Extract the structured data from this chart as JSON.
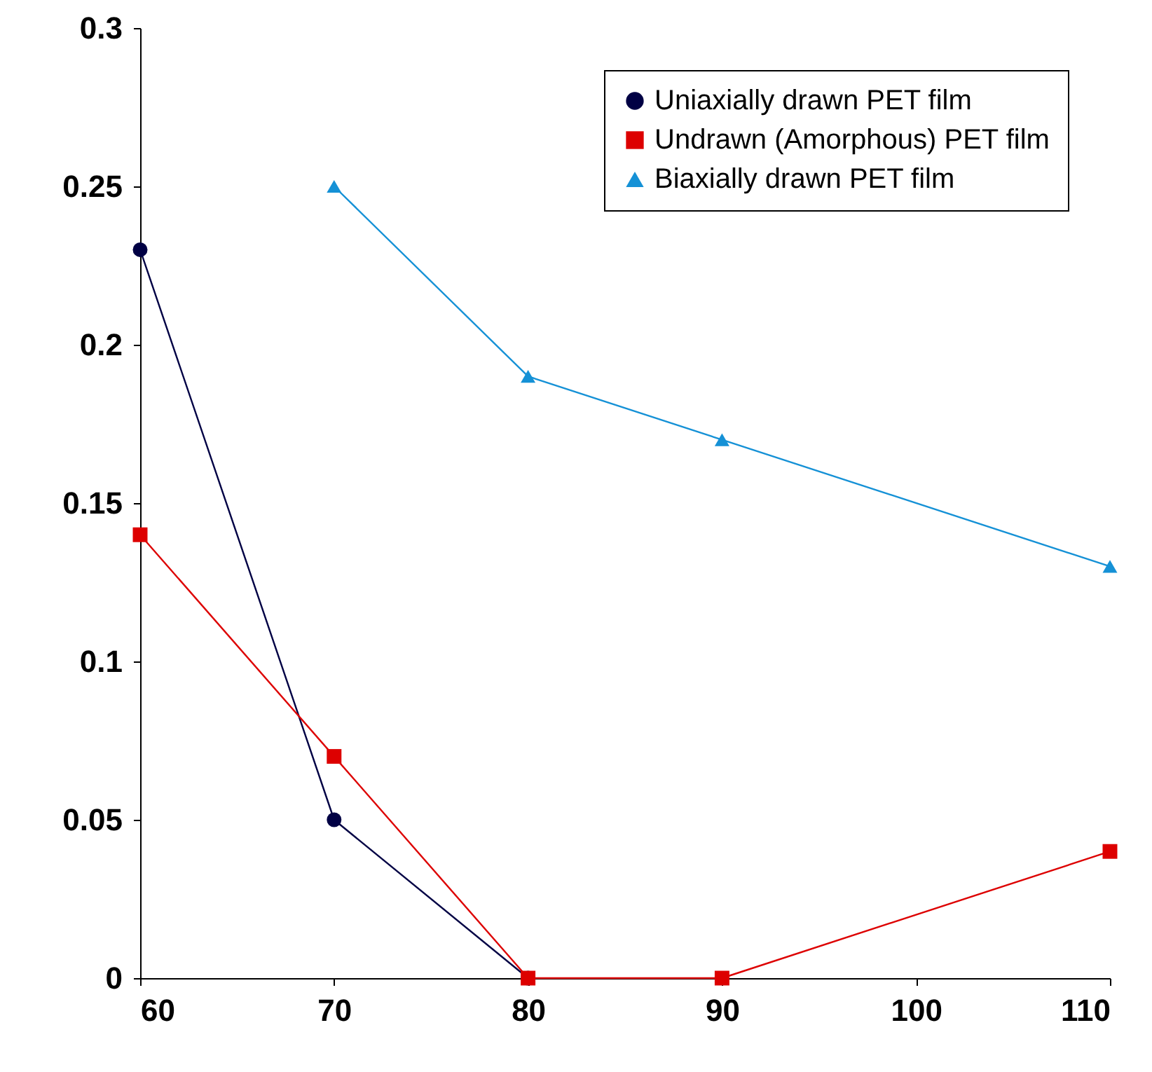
{
  "chart_data": {
    "type": "line",
    "x": [
      60,
      70,
      80,
      90,
      110
    ],
    "series": [
      {
        "name": "Uniaxially drawn PET film",
        "color": "#000044",
        "marker": "circle",
        "values": [
          0.23,
          0.05,
          0,
          null,
          null
        ]
      },
      {
        "name": "Undrawn (Amorphous) PET film",
        "color": "#dd0000",
        "marker": "square",
        "values": [
          0.14,
          0.07,
          0,
          0,
          0.04
        ]
      },
      {
        "name": "Biaxially drawn PET film",
        "color": "#1591d6",
        "marker": "triangle",
        "values": [
          null,
          0.25,
          0.19,
          0.17,
          0.13
        ]
      }
    ],
    "xlim": [
      60,
      110
    ],
    "xticks": [
      60,
      70,
      80,
      90,
      100,
      110
    ],
    "ylim": [
      0,
      0.3
    ],
    "yticks": [
      0,
      0.05,
      0.1,
      0.15,
      0.2,
      0.25,
      0.3
    ],
    "grid": false,
    "legend": "top right",
    "line_style": "solid"
  }
}
